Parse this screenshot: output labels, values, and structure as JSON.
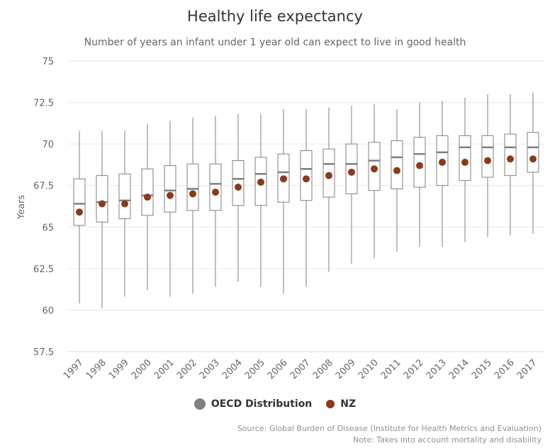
{
  "chart_data": {
    "type": "boxplot",
    "title": "Healthy life expectancy",
    "subtitle": "Number of years an infant under 1 year old can expect to live in good health",
    "ylabel": "Years",
    "xlabel": "",
    "ylim": [
      57.5,
      75
    ],
    "yticks": [
      "57.5",
      "60",
      "62.5",
      "65",
      "67.5",
      "70",
      "72.5",
      "75"
    ],
    "ytick_values": [
      57.5,
      60,
      62.5,
      65,
      67.5,
      70,
      72.5,
      75
    ],
    "grid": true,
    "legend_position": "bottom",
    "categories": [
      "1997",
      "1998",
      "1999",
      "2000",
      "2001",
      "2002",
      "2003",
      "2004",
      "2005",
      "2006",
      "2007",
      "2008",
      "2009",
      "2010",
      "2011",
      "2012",
      "2013",
      "2014",
      "2015",
      "2016",
      "2017"
    ],
    "series": [
      {
        "name": "OECD Distribution",
        "type": "boxplot",
        "color": "#7f7f7f",
        "boxes": [
          {
            "low": 60.4,
            "q1": 65.1,
            "median": 66.4,
            "q3": 67.9,
            "high": 70.8
          },
          {
            "low": 60.1,
            "q1": 65.3,
            "median": 66.5,
            "q3": 68.1,
            "high": 70.8
          },
          {
            "low": 60.8,
            "q1": 65.5,
            "median": 66.6,
            "q3": 68.2,
            "high": 70.8
          },
          {
            "low": 61.2,
            "q1": 65.7,
            "median": 66.9,
            "q3": 68.5,
            "high": 71.2
          },
          {
            "low": 60.8,
            "q1": 65.9,
            "median": 67.2,
            "q3": 68.7,
            "high": 71.4
          },
          {
            "low": 61.0,
            "q1": 66.0,
            "median": 67.3,
            "q3": 68.8,
            "high": 71.6
          },
          {
            "low": 61.4,
            "q1": 66.0,
            "median": 67.6,
            "q3": 68.8,
            "high": 71.7
          },
          {
            "low": 61.7,
            "q1": 66.3,
            "median": 67.9,
            "q3": 69.0,
            "high": 71.8
          },
          {
            "low": 61.4,
            "q1": 66.3,
            "median": 68.2,
            "q3": 69.2,
            "high": 71.8
          },
          {
            "low": 61.0,
            "q1": 66.5,
            "median": 68.3,
            "q3": 69.4,
            "high": 72.1
          },
          {
            "low": 61.4,
            "q1": 66.6,
            "median": 68.5,
            "q3": 69.6,
            "high": 72.1
          },
          {
            "low": 62.3,
            "q1": 66.8,
            "median": 68.8,
            "q3": 69.7,
            "high": 72.2
          },
          {
            "low": 62.8,
            "q1": 67.0,
            "median": 68.8,
            "q3": 70.0,
            "high": 72.3
          },
          {
            "low": 63.1,
            "q1": 67.2,
            "median": 69.0,
            "q3": 70.1,
            "high": 72.4
          },
          {
            "low": 63.5,
            "q1": 67.3,
            "median": 69.2,
            "q3": 70.2,
            "high": 72.1
          },
          {
            "low": 63.8,
            "q1": 67.4,
            "median": 69.4,
            "q3": 70.4,
            "high": 72.5
          },
          {
            "low": 63.8,
            "q1": 67.5,
            "median": 69.5,
            "q3": 70.5,
            "high": 72.6
          },
          {
            "low": 64.1,
            "q1": 67.8,
            "median": 69.8,
            "q3": 70.5,
            "high": 72.8
          },
          {
            "low": 64.4,
            "q1": 68.0,
            "median": 69.8,
            "q3": 70.5,
            "high": 73.0
          },
          {
            "low": 64.5,
            "q1": 68.1,
            "median": 69.8,
            "q3": 70.6,
            "high": 73.0
          },
          {
            "low": 64.6,
            "q1": 68.3,
            "median": 69.8,
            "q3": 70.7,
            "high": 73.1
          }
        ]
      },
      {
        "name": "NZ",
        "type": "scatter",
        "color": "#8b3a1a",
        "values": [
          65.9,
          66.4,
          66.4,
          66.8,
          66.9,
          67.0,
          67.1,
          67.4,
          67.7,
          67.9,
          67.9,
          68.1,
          68.3,
          68.5,
          68.4,
          68.7,
          68.9,
          68.9,
          69.0,
          69.1,
          69.1
        ]
      }
    ],
    "credits": [
      "Source: Global Burden of Disease (Institute for Health Metrics and Evaluation)",
      "Note: Takes into account mortality and disability"
    ]
  }
}
